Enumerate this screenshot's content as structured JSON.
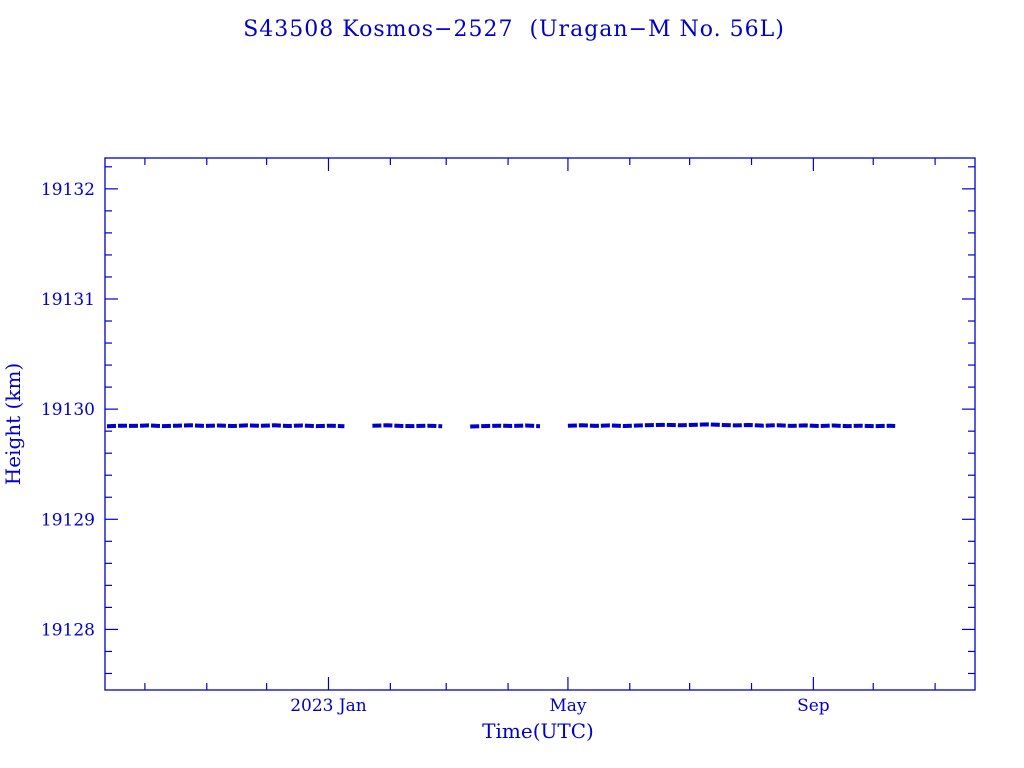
{
  "colors": {
    "text": "#0000cd",
    "axis": "#0000cd",
    "data": "#0000cd",
    "background": "#ffffff"
  },
  "chart_data": {
    "type": "scatter",
    "title": "S43508 Kosmos−2527  (Uragan−M No. 56L)",
    "xlabel": "Time(UTC)",
    "ylabel": "Height (km)",
    "legend": "none",
    "grid": false,
    "x_axis": {
      "start": "2022-09-11",
      "end": "2023-11-21",
      "tick_labels": [
        {
          "label": "2023 Jan",
          "date": "2023-01-01"
        },
        {
          "label": "May",
          "date": "2023-05-01"
        },
        {
          "label": "Sep",
          "date": "2023-09-01"
        }
      ],
      "minor_tick_unit": "month"
    },
    "y_axis": {
      "min": 19127.45,
      "max": 19132.28,
      "major_ticks": [
        19128,
        19129,
        19130,
        19131,
        19132
      ],
      "minor_tick_step": 0.2
    },
    "series": [
      {
        "name": "orbit-height",
        "mean_height_km": 19129.85,
        "points": [
          [
            "2022-09-12",
            19129.845
          ],
          [
            "2022-09-19",
            19129.85
          ],
          [
            "2022-09-26",
            19129.848
          ],
          [
            "2022-10-03",
            19129.852
          ],
          [
            "2022-10-10",
            19129.846
          ],
          [
            "2022-10-17",
            19129.85
          ],
          [
            "2022-10-24",
            19129.853
          ],
          [
            "2022-10-31",
            19129.848
          ],
          [
            "2022-11-07",
            19129.851
          ],
          [
            "2022-11-14",
            19129.847
          ],
          [
            "2022-11-21",
            19129.852
          ],
          [
            "2022-11-28",
            19129.849
          ],
          [
            "2022-12-05",
            19129.853
          ],
          [
            "2022-12-12",
            19129.847
          ],
          [
            "2022-12-19",
            19129.851
          ],
          [
            "2022-12-26",
            19129.846
          ],
          [
            "2023-01-02",
            19129.85
          ],
          [
            "2023-01-09",
            19129.845
          ],
          [
            "2023-01-23",
            19129.849
          ],
          [
            "2023-01-30",
            19129.853
          ],
          [
            "2023-02-06",
            19129.848
          ],
          [
            "2023-02-13",
            19129.846
          ],
          [
            "2023-02-20",
            19129.85
          ],
          [
            "2023-02-27",
            19129.844
          ],
          [
            "2023-03-13",
            19129.842
          ],
          [
            "2023-03-20",
            19129.846
          ],
          [
            "2023-03-27",
            19129.85
          ],
          [
            "2023-04-03",
            19129.847
          ],
          [
            "2023-04-10",
            19129.851
          ],
          [
            "2023-04-17",
            19129.845
          ],
          [
            "2023-05-01",
            19129.849
          ],
          [
            "2023-05-08",
            19129.853
          ],
          [
            "2023-05-15",
            19129.848
          ],
          [
            "2023-05-22",
            19129.852
          ],
          [
            "2023-05-29",
            19129.847
          ],
          [
            "2023-06-05",
            19129.851
          ],
          [
            "2023-06-12",
            19129.855
          ],
          [
            "2023-06-19",
            19129.858
          ],
          [
            "2023-06-26",
            19129.853
          ],
          [
            "2023-07-03",
            19129.857
          ],
          [
            "2023-07-10",
            19129.861
          ],
          [
            "2023-07-17",
            19129.856
          ],
          [
            "2023-07-24",
            19129.852
          ],
          [
            "2023-07-31",
            19129.856
          ],
          [
            "2023-08-07",
            19129.85
          ],
          [
            "2023-08-14",
            19129.854
          ],
          [
            "2023-08-21",
            19129.848
          ],
          [
            "2023-08-28",
            19129.852
          ],
          [
            "2023-09-04",
            19129.847
          ],
          [
            "2023-09-11",
            19129.851
          ],
          [
            "2023-09-18",
            19129.846
          ],
          [
            "2023-09-25",
            19129.85
          ],
          [
            "2023-10-02",
            19129.845
          ],
          [
            "2023-10-09",
            19129.849
          ],
          [
            "2023-10-12",
            19129.847
          ]
        ]
      }
    ]
  }
}
